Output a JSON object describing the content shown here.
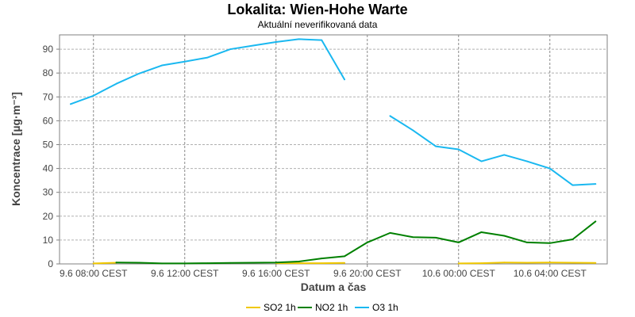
{
  "chart_data": {
    "type": "line",
    "title": "Lokalita: Wien-Hohe  Warte",
    "subtitle": "Aktuální neverifikovaná data",
    "xlabel": "Datum a čas",
    "ylabel": "Koncentrace [µg·m⁻³]",
    "x_ticks": [
      {
        "hour": 1,
        "label": "9.6 08:00 CEST"
      },
      {
        "hour": 5,
        "label": "9.6 12:00 CEST"
      },
      {
        "hour": 9,
        "label": "9.6 16:00 CEST"
      },
      {
        "hour": 13,
        "label": "9.6 20:00 CEST"
      },
      {
        "hour": 17,
        "label": "10.6 00:00 CEST"
      },
      {
        "hour": 21,
        "label": "10.6 04:00 CEST"
      }
    ],
    "xlim": [
      0,
      24
    ],
    "ylim": [
      0,
      96
    ],
    "y_ticks": [
      0,
      10,
      20,
      30,
      40,
      50,
      60,
      70,
      80,
      90
    ],
    "grid": true,
    "legend_position": "bottom",
    "series": [
      {
        "name": "SO2 1h",
        "color": "#f0c800",
        "points": [
          [
            1,
            0.2
          ],
          [
            2,
            0.5
          ],
          [
            null,
            null
          ],
          [
            9,
            0.3
          ],
          [
            10,
            0.3
          ],
          [
            11,
            0.3
          ],
          [
            12,
            0.4
          ],
          [
            null,
            null
          ],
          [
            17,
            0.2
          ],
          [
            18,
            0.3
          ],
          [
            19,
            0.6
          ],
          [
            20,
            0.5
          ],
          [
            21,
            0.6
          ],
          [
            22,
            0.5
          ],
          [
            23,
            0.4
          ]
        ]
      },
      {
        "name": "NO2 1h",
        "color": "#008000",
        "points": [
          [
            2,
            0.6
          ],
          [
            3,
            0.5
          ],
          [
            4,
            0.2
          ],
          [
            5,
            0.2
          ],
          [
            6,
            0.3
          ],
          [
            7,
            0.4
          ],
          [
            8,
            0.5
          ],
          [
            9,
            0.6
          ],
          [
            10,
            1.0
          ],
          [
            11,
            2.3
          ],
          [
            12,
            3.2
          ],
          [
            13,
            9.0
          ],
          [
            14,
            13.0
          ],
          [
            15,
            11.2
          ],
          [
            16,
            11.0
          ],
          [
            17,
            9.0
          ],
          [
            18,
            13.3
          ],
          [
            19,
            11.8
          ],
          [
            20,
            9.0
          ],
          [
            21,
            8.7
          ],
          [
            22,
            10.3
          ],
          [
            23,
            17.8
          ]
        ]
      },
      {
        "name": "O3 1h",
        "color": "#1ab8f0",
        "points": [
          [
            0,
            67.0
          ],
          [
            1,
            70.5
          ],
          [
            2,
            75.5
          ],
          [
            3,
            79.8
          ],
          [
            4,
            83.2
          ],
          [
            5,
            84.8
          ],
          [
            6,
            86.5
          ],
          [
            7,
            90.0
          ],
          [
            8,
            91.5
          ],
          [
            9,
            93.0
          ],
          [
            10,
            94.2
          ],
          [
            11,
            93.8
          ],
          [
            12,
            77.3
          ],
          [
            null,
            null
          ],
          [
            14,
            62.0
          ],
          [
            15,
            56.0
          ],
          [
            16,
            49.3
          ],
          [
            17,
            48.0
          ],
          [
            18,
            43.0
          ],
          [
            19,
            45.7
          ],
          [
            20,
            43.0
          ],
          [
            21,
            40.0
          ],
          [
            22,
            33.0
          ],
          [
            23,
            33.5
          ]
        ]
      }
    ]
  }
}
